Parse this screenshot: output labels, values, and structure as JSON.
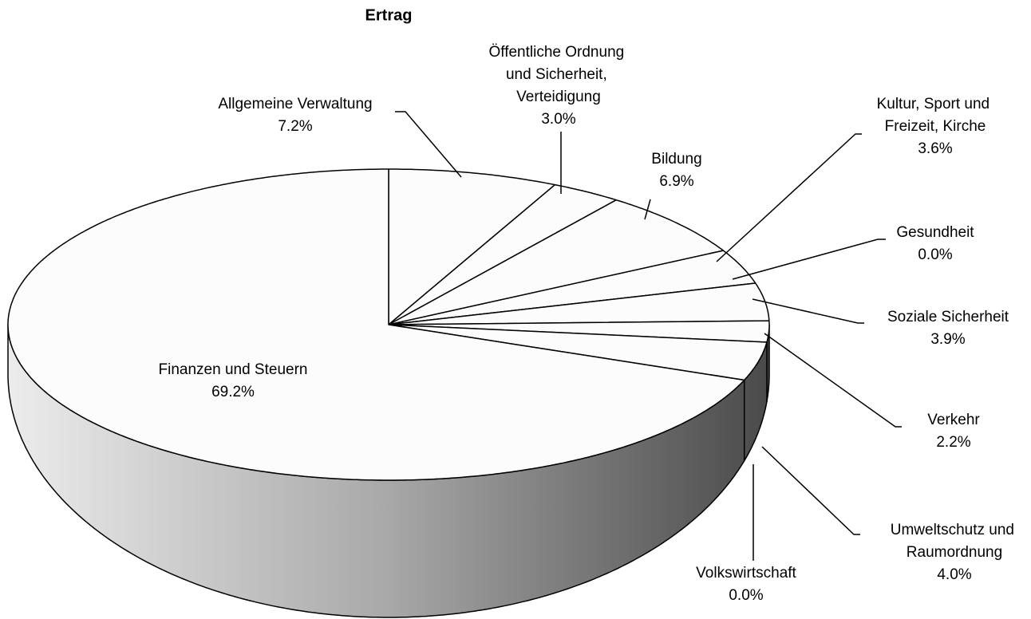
{
  "chart_data": {
    "type": "pie",
    "title": "Ertrag",
    "categories": [
      "Allgemeine Verwaltung",
      "Öffentliche Ordnung und Sicherheit, Verteidigung",
      "Bildung",
      "Kultur, Sport und Freizeit, Kirche",
      "Gesundheit",
      "Soziale Sicherheit",
      "Verkehr",
      "Umweltschutz und Raumordnung",
      "Volkswirtschaft",
      "Finanzen und Steuern"
    ],
    "values": [
      7.2,
      3.0,
      6.9,
      3.6,
      0.0,
      3.9,
      2.2,
      4.0,
      0.0,
      69.2
    ],
    "value_labels": [
      "7.2%",
      "3.0%",
      "6.9%",
      "3.6%",
      "0.0%",
      "3.9%",
      "2.2%",
      "4.0%",
      "0.0%",
      "69.2%"
    ]
  }
}
